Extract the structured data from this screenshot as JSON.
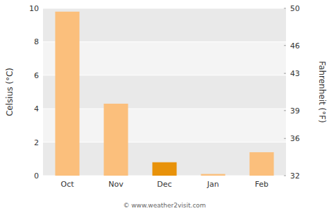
{
  "chart_data": {
    "type": "bar",
    "categories": [
      "Oct",
      "Nov",
      "Dec",
      "Jan",
      "Feb"
    ],
    "values": [
      9.8,
      4.3,
      0.8,
      0.1,
      1.4
    ],
    "colors": [
      "#FBBF7C",
      "#FBBF7C",
      "#E8920A",
      "#FBBF7C",
      "#FBBF7C"
    ],
    "ylabel": "Celsius (°C)",
    "y2label": "Fahrenheit (°F)",
    "ylim": [
      0,
      10
    ],
    "yticks": [
      0,
      2,
      4,
      6,
      8,
      10
    ],
    "y2lim": [
      32,
      50
    ],
    "y2ticks": [
      32,
      36,
      39,
      43,
      46,
      50
    ],
    "grid": true,
    "annotations": [
      "© www.weather2visit.com"
    ]
  }
}
